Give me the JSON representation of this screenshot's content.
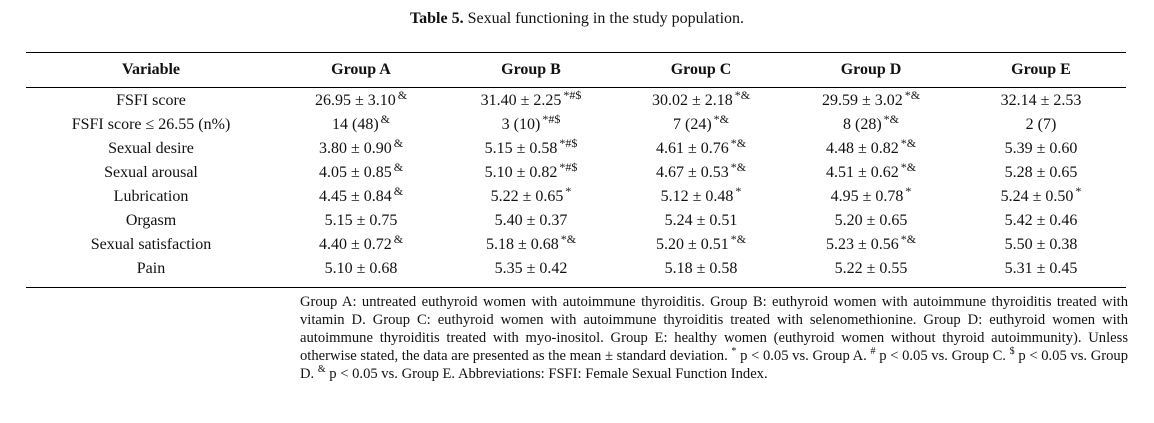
{
  "caption": {
    "label": "Table 5.",
    "text": "Sexual functioning in the study population."
  },
  "headers": [
    "Variable",
    "Group A",
    "Group B",
    "Group C",
    "Group D",
    "Group E"
  ],
  "rows": [
    {
      "variable": "FSFI score",
      "cells": [
        {
          "v": "26.95 ± 3.10",
          "m": "&"
        },
        {
          "v": "31.40 ± 2.25",
          "m": "*#$"
        },
        {
          "v": "30.02 ± 2.18",
          "m": "*&"
        },
        {
          "v": "29.59 ± 3.02",
          "m": "*&"
        },
        {
          "v": "32.14 ± 2.53",
          "m": ""
        }
      ]
    },
    {
      "variable": "FSFI score ≤ 26.55 (n%)",
      "cells": [
        {
          "v": "14 (48)",
          "m": "&"
        },
        {
          "v": "3 (10)",
          "m": "*#$"
        },
        {
          "v": "7 (24)",
          "m": "*&"
        },
        {
          "v": "8 (28)",
          "m": "*&"
        },
        {
          "v": "2 (7)",
          "m": ""
        }
      ]
    },
    {
      "variable": "Sexual desire",
      "cells": [
        {
          "v": "3.80 ± 0.90",
          "m": "&"
        },
        {
          "v": "5.15 ± 0.58",
          "m": "*#$"
        },
        {
          "v": "4.61 ± 0.76",
          "m": "*&"
        },
        {
          "v": "4.48 ± 0.82",
          "m": "*&"
        },
        {
          "v": "5.39 ± 0.60",
          "m": ""
        }
      ]
    },
    {
      "variable": "Sexual arousal",
      "cells": [
        {
          "v": "4.05 ± 0.85",
          "m": "&"
        },
        {
          "v": "5.10 ± 0.82",
          "m": "*#$"
        },
        {
          "v": "4.67 ± 0.53",
          "m": "*&"
        },
        {
          "v": "4.51 ± 0.62",
          "m": "*&"
        },
        {
          "v": "5.28 ± 0.65",
          "m": ""
        }
      ]
    },
    {
      "variable": "Lubrication",
      "cells": [
        {
          "v": "4.45 ± 0.84",
          "m": "&"
        },
        {
          "v": "5.22 ± 0.65",
          "m": "*"
        },
        {
          "v": "5.12 ± 0.48",
          "m": "*"
        },
        {
          "v": "4.95 ± 0.78",
          "m": "*"
        },
        {
          "v": "5.24 ± 0.50",
          "m": "*"
        }
      ]
    },
    {
      "variable": "Orgasm",
      "cells": [
        {
          "v": "5.15 ± 0.75",
          "m": ""
        },
        {
          "v": "5.40 ± 0.37",
          "m": ""
        },
        {
          "v": "5.24 ± 0.51",
          "m": ""
        },
        {
          "v": "5.20 ± 0.65",
          "m": ""
        },
        {
          "v": "5.42 ± 0.46",
          "m": ""
        }
      ]
    },
    {
      "variable": "Sexual satisfaction",
      "cells": [
        {
          "v": "4.40 ± 0.72",
          "m": "&"
        },
        {
          "v": "5.18 ± 0.68",
          "m": "*&"
        },
        {
          "v": "5.20 ± 0.51",
          "m": "*&"
        },
        {
          "v": "5.23 ± 0.56",
          "m": "*&"
        },
        {
          "v": "5.50 ± 0.38",
          "m": ""
        }
      ]
    },
    {
      "variable": "Pain",
      "cells": [
        {
          "v": "5.10 ± 0.68",
          "m": ""
        },
        {
          "v": "5.35 ± 0.42",
          "m": ""
        },
        {
          "v": "5.18 ± 0.58",
          "m": ""
        },
        {
          "v": "5.22 ± 0.55",
          "m": ""
        },
        {
          "v": "5.31 ± 0.45",
          "m": ""
        }
      ]
    }
  ],
  "notes": {
    "groups": "Group A: untreated euthyroid women with autoimmune thyroiditis. Group B: euthyroid women with autoimmune thyroiditis treated with vitamin D. Group C: euthyroid women with autoimmune thyroiditis treated with selenomethionine. Group D: euthyroid women with autoimmune thyroiditis treated with myo-inositol. Group E: healthy women (euthyroid women without thyroid autoimmunity). Unless otherwise stated, the data are presented as the mean ± standard deviation.",
    "sig_a": "p < 0.05 vs. Group A.",
    "sig_c": "p < 0.05 vs. Group C.",
    "sig_d": "p < 0.05 vs. Group D.",
    "sig_e": "p < 0.05 vs. Group E.",
    "abbrev": "Abbreviations: FSFI: Female Sexual Function Index.",
    "sym_a": "*",
    "sym_c": "#",
    "sym_d": "$",
    "sym_e": "&"
  }
}
